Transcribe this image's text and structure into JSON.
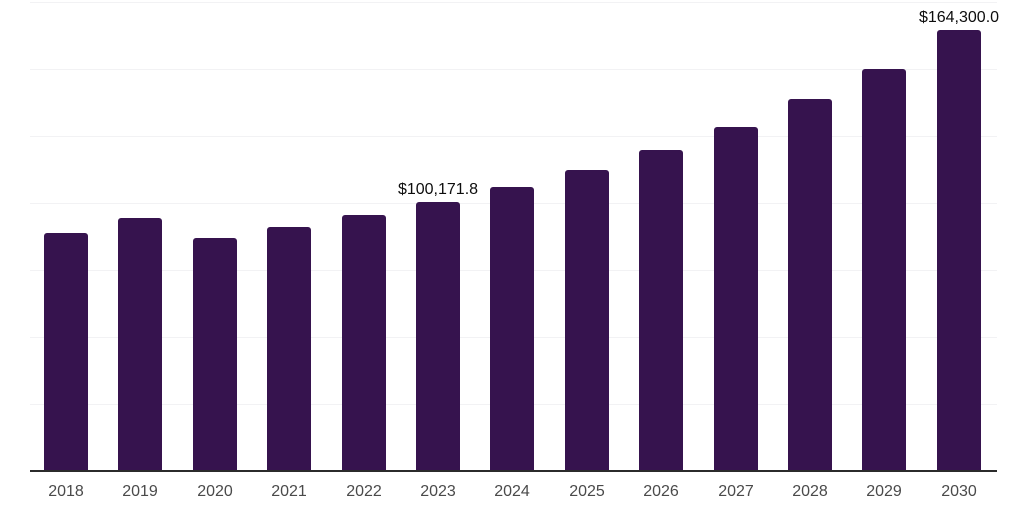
{
  "chart_data": {
    "type": "bar",
    "categories": [
      "2018",
      "2019",
      "2020",
      "2021",
      "2022",
      "2023",
      "2024",
      "2025",
      "2026",
      "2027",
      "2028",
      "2029",
      "2030"
    ],
    "values": [
      88700,
      94200,
      86800,
      90900,
      95300,
      100171.8,
      105700,
      112000,
      119500,
      128000,
      138400,
      149900,
      164300
    ],
    "value_labels": {
      "2023": "$100,171.8",
      "2030": "$164,300.0"
    },
    "xlabel": "",
    "ylabel": "",
    "ylim": [
      0,
      174700
    ],
    "grid": true,
    "gridline_count": 8,
    "legend_position": "none",
    "colors": {
      "bar": "#36134e",
      "axis_line": "#2b2b2b",
      "gridline": "#f2f2f4",
      "tick_label": "#4a4a4a",
      "data_label": "#0d0d0d",
      "background": "#ffffff"
    }
  }
}
